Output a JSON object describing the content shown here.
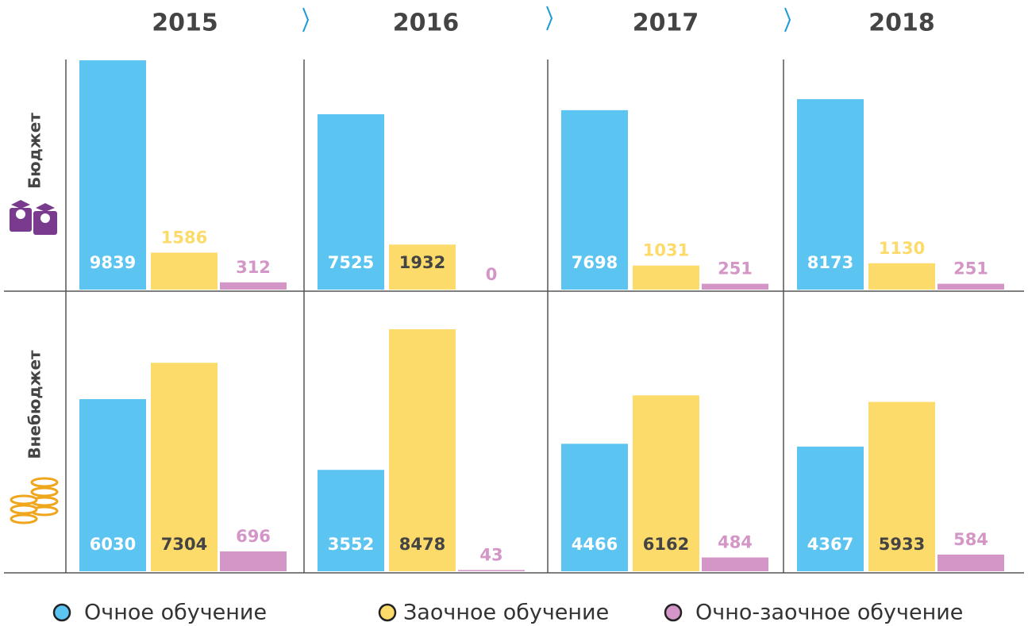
{
  "chart_data": {
    "type": "bar",
    "categories": [
      "2015",
      "2016",
      "2017",
      "2018"
    ],
    "rows": [
      "Бюджет",
      "Внебюджет"
    ],
    "series": [
      {
        "name": "Очное обучение",
        "color": "#5bc4f1",
        "values": [
          [
            9839,
            7525,
            7698,
            8173
          ],
          [
            6030,
            3552,
            4466,
            4367
          ]
        ]
      },
      {
        "name": "Заочное обучение",
        "color": "#fcdb6b",
        "values": [
          [
            1586,
            1932,
            1031,
            1130
          ],
          [
            7304,
            8478,
            6162,
            5933
          ]
        ]
      },
      {
        "name": "Очно-заочное обучение",
        "color": "#d496c6",
        "values": [
          [
            312,
            0,
            251,
            251
          ],
          [
            696,
            43,
            484,
            584
          ]
        ]
      }
    ]
  }
}
